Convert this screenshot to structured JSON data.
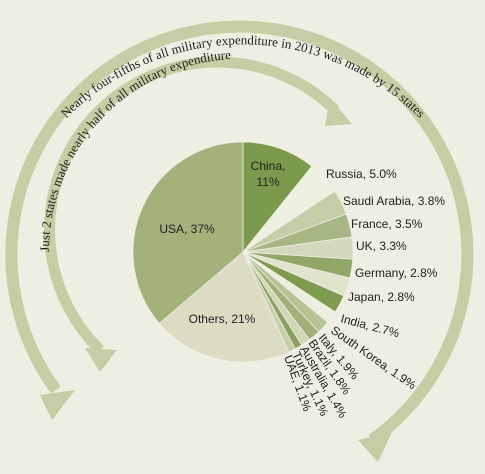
{
  "chart_data": {
    "type": "pie",
    "labels": [
      "China, 11%",
      "Russia, 5.0%",
      "Saudi Arabia, 3.8%",
      "France, 3.5%",
      "UK, 3.3%",
      "Germany, 2.8%",
      "Japan, 2.8%",
      "India, 2.7%",
      "South Korea, 1.9%",
      "Italy, 1.9%",
      "Brazil, 1.8%",
      "Australia, 1.4%",
      "Turkey, 1.1%",
      "UAE, 1.1%",
      "Others, 21%",
      "USA, 37%"
    ],
    "values": [
      11,
      5.0,
      3.8,
      3.5,
      3.3,
      2.8,
      2.8,
      2.7,
      1.9,
      1.9,
      1.8,
      1.4,
      1.1,
      1.1,
      21,
      37
    ],
    "colors": [
      "#7b9a4c",
      "#eef0e1",
      "#c3cda6",
      "#a7b783",
      "#d2d9bc",
      "#91a767",
      "#dfe4cd",
      "#7e9b50",
      "#eceedf",
      "#b6c493",
      "#9fb176",
      "#cfd7b6",
      "#8aa15e",
      "#c7d0ab",
      "#dcdcc5",
      "#a2b27a"
    ],
    "annotations": [
      "Nearly four-fifths of all military expenditure in 2013 was made by 15 states",
      "Just 2 states made nearly half of all military expenditure"
    ]
  }
}
